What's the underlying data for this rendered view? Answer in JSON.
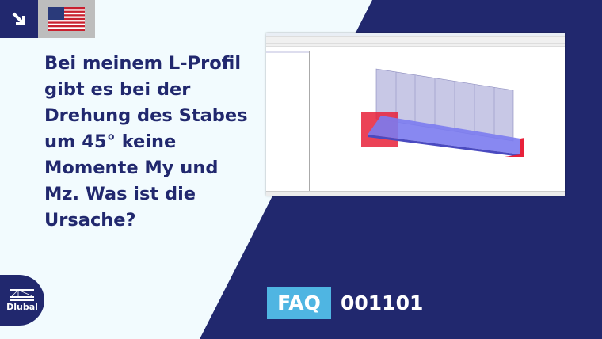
{
  "title": "Bei meinem L-Profil gibt es bei der Drehung des Stabes um 45° keine Momente My und Mz. Was ist die Ursache?",
  "language_flag": "us-flag-icon",
  "corner_icon": "arrow-down-right-icon",
  "logo_text": "Dlubal",
  "faq_label": "FAQ",
  "faq_number": "001101",
  "colors": {
    "navy": "#21286e",
    "light_bg": "#f2fbfe",
    "faq_badge": "#4fb5e2",
    "support_red": "#e8213a",
    "member_blue": "#7b7bf0"
  }
}
